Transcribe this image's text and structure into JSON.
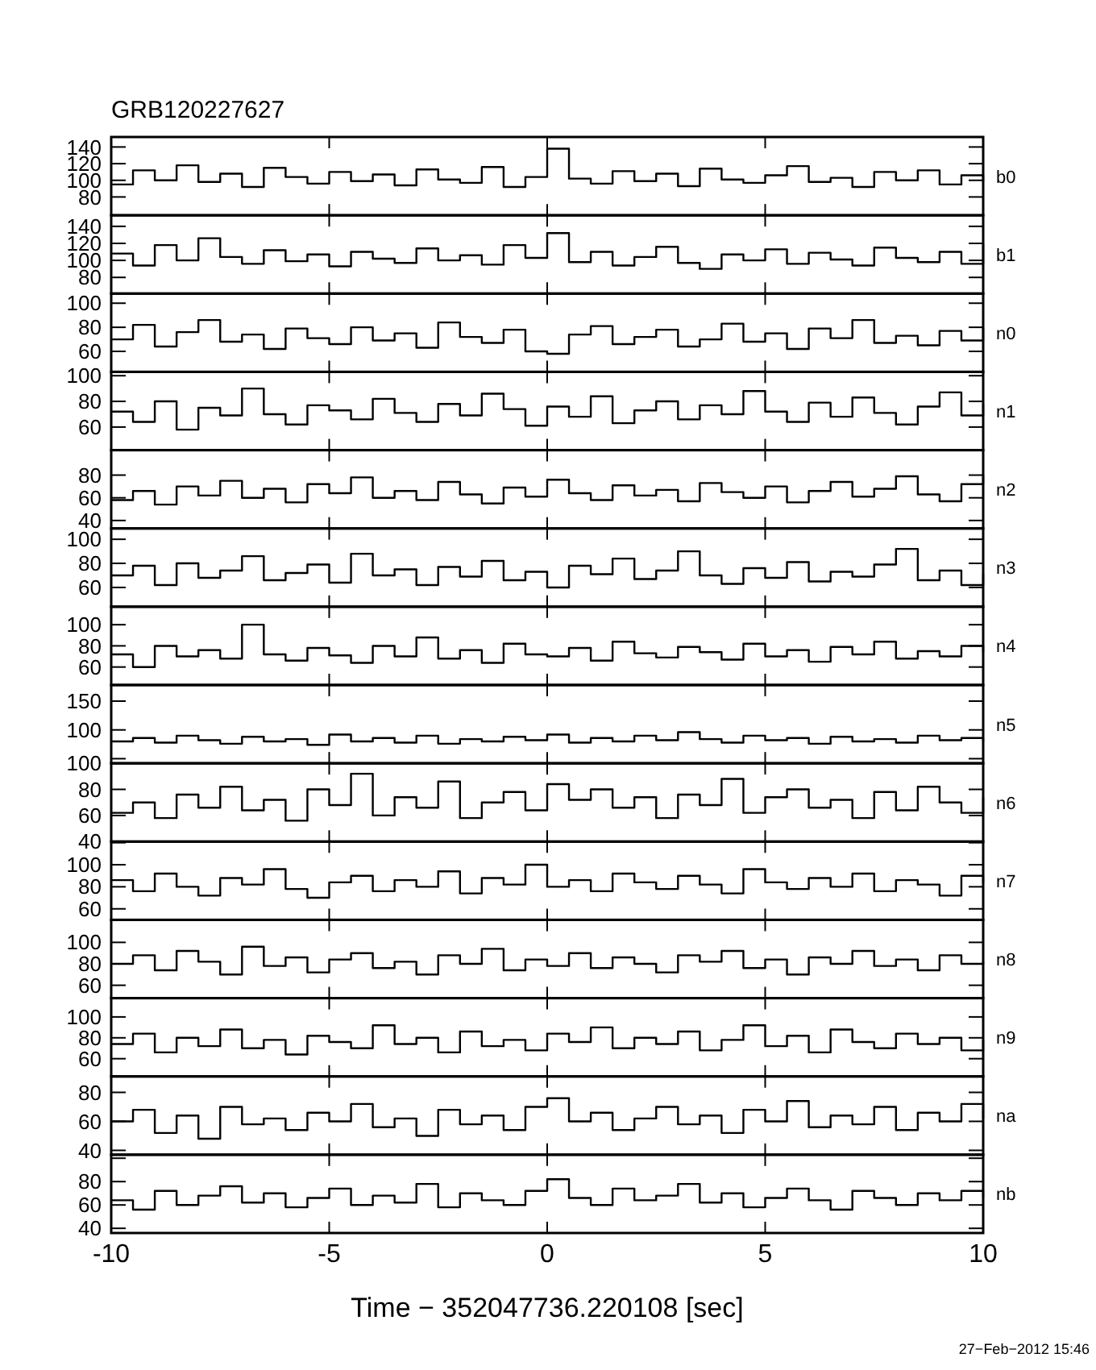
{
  "chart_data": [
    {
      "type": "step",
      "title": "GRB120227627",
      "x": [
        -10,
        -9.5,
        -9,
        -8.5,
        -8,
        -7.5,
        -7,
        -6.5,
        -6,
        -5.5,
        -5,
        -4.5,
        -4,
        -3.5,
        -3,
        -2.5,
        -2,
        -1.5,
        -1,
        -0.5,
        0,
        0.5,
        1,
        1.5,
        2,
        2.5,
        3,
        3.5,
        4,
        4.5,
        5,
        5.5,
        6,
        6.5,
        7,
        7.5,
        8,
        8.5,
        9,
        9.5,
        10
      ],
      "xlim": [
        -10,
        10
      ],
      "xticks": [
        -10,
        -5,
        0,
        5,
        10
      ],
      "ylim": [
        58,
        152
      ],
      "yticks": [
        80,
        100,
        120,
        140
      ],
      "tick_labels": "y",
      "series": [
        {
          "name": "b0",
          "color": "#000000",
          "values": [
            95,
            112,
            100,
            118,
            98,
            108,
            92,
            115,
            104,
            96,
            110,
            99,
            107,
            94,
            113,
            101,
            97,
            116,
            92,
            104,
            138,
            102,
            96,
            111,
            99,
            108,
            93,
            114,
            101,
            97,
            106,
            117,
            98,
            103,
            92,
            110,
            100,
            112,
            95,
            106,
            99
          ]
        }
      ]
    },
    {
      "type": "step",
      "x": [
        -10,
        -9.5,
        -9,
        -8.5,
        -8,
        -7.5,
        -7,
        -6.5,
        -6,
        -5.5,
        -5,
        -4.5,
        -4,
        -3.5,
        -3,
        -2.5,
        -2,
        -1.5,
        -1,
        -0.5,
        0,
        0.5,
        1,
        1.5,
        2,
        2.5,
        3,
        3.5,
        4,
        4.5,
        5,
        5.5,
        6,
        6.5,
        7,
        7.5,
        8,
        8.5,
        9,
        9.5,
        10
      ],
      "xlim": [
        -10,
        10
      ],
      "xticks": [
        -10,
        -5,
        0,
        5,
        10
      ],
      "ylim": [
        61,
        153
      ],
      "yticks": [
        80,
        100,
        120,
        140
      ],
      "tick_labels": "y",
      "series": [
        {
          "name": "b1",
          "color": "#000000",
          "values": [
            108,
            94,
            118,
            100,
            126,
            104,
            96,
            112,
            99,
            107,
            93,
            110,
            102,
            97,
            114,
            100,
            106,
            95,
            118,
            103,
            132,
            98,
            110,
            94,
            104,
            116,
            97,
            90,
            107,
            100,
            113,
            96,
            109,
            101,
            94,
            115,
            103,
            98,
            110,
            96,
            120
          ]
        }
      ]
    },
    {
      "type": "step",
      "x": [
        -10,
        -9.5,
        -9,
        -8.5,
        -8,
        -7.5,
        -7,
        -6.5,
        -6,
        -5.5,
        -5,
        -4.5,
        -4,
        -3.5,
        -3,
        -2.5,
        -2,
        -1.5,
        -1,
        -0.5,
        0,
        0.5,
        1,
        1.5,
        2,
        2.5,
        3,
        3.5,
        4,
        4.5,
        5,
        5.5,
        6,
        6.5,
        7,
        7.5,
        8,
        8.5,
        9,
        9.5,
        10
      ],
      "xlim": [
        -10,
        10
      ],
      "xticks": [
        -10,
        -5,
        0,
        5,
        10
      ],
      "ylim": [
        43,
        108
      ],
      "yticks": [
        60,
        80,
        100
      ],
      "tick_labels": "y",
      "series": [
        {
          "name": "n0",
          "color": "#000000",
          "values": [
            70,
            82,
            64,
            76,
            86,
            68,
            74,
            62,
            79,
            71,
            66,
            80,
            69,
            75,
            63,
            84,
            72,
            67,
            78,
            60,
            58,
            74,
            81,
            66,
            72,
            78,
            64,
            70,
            83,
            68,
            75,
            62,
            79,
            71,
            86,
            67,
            73,
            65,
            77,
            69,
            80
          ]
        }
      ]
    },
    {
      "type": "step",
      "x": [
        -10,
        -9.5,
        -9,
        -8.5,
        -8,
        -7.5,
        -7,
        -6.5,
        -6,
        -5.5,
        -5,
        -4.5,
        -4,
        -3.5,
        -3,
        -2.5,
        -2,
        -1.5,
        -1,
        -0.5,
        0,
        0.5,
        1,
        1.5,
        2,
        2.5,
        3,
        3.5,
        4,
        4.5,
        5,
        5.5,
        6,
        6.5,
        7,
        7.5,
        8,
        8.5,
        9,
        9.5,
        10
      ],
      "xlim": [
        -10,
        10
      ],
      "xticks": [
        -10,
        -5,
        0,
        5,
        10
      ],
      "ylim": [
        42,
        103
      ],
      "yticks": [
        60,
        80,
        100
      ],
      "tick_labels": "y",
      "series": [
        {
          "name": "n1",
          "color": "#000000",
          "values": [
            72,
            64,
            80,
            58,
            75,
            69,
            90,
            70,
            62,
            77,
            73,
            66,
            82,
            71,
            64,
            78,
            69,
            86,
            74,
            61,
            76,
            68,
            84,
            63,
            73,
            80,
            66,
            77,
            70,
            88,
            72,
            64,
            79,
            68,
            83,
            71,
            62,
            76,
            87,
            69,
            78
          ]
        }
      ]
    },
    {
      "type": "step",
      "x": [
        -10,
        -9.5,
        -9,
        -8.5,
        -8,
        -7.5,
        -7,
        -6.5,
        -6,
        -5.5,
        -5,
        -4.5,
        -4,
        -3.5,
        -3,
        -2.5,
        -2,
        -1.5,
        -1,
        -0.5,
        0,
        0.5,
        1,
        1.5,
        2,
        2.5,
        3,
        3.5,
        4,
        4.5,
        5,
        5.5,
        6,
        6.5,
        7,
        7.5,
        8,
        8.5,
        9,
        9.5,
        10
      ],
      "xlim": [
        -10,
        10
      ],
      "xticks": [
        -10,
        -5,
        0,
        5,
        10
      ],
      "ylim": [
        33,
        102
      ],
      "yticks": [
        40,
        60,
        80
      ],
      "tick_labels": "y",
      "series": [
        {
          "name": "n2",
          "color": "#000000",
          "values": [
            58,
            66,
            54,
            70,
            62,
            75,
            60,
            68,
            56,
            72,
            64,
            78,
            60,
            66,
            58,
            74,
            63,
            55,
            69,
            61,
            76,
            64,
            58,
            71,
            62,
            67,
            57,
            73,
            65,
            60,
            70,
            56,
            66,
            74,
            61,
            68,
            79,
            63,
            57,
            72,
            80
          ]
        }
      ]
    },
    {
      "type": "step",
      "x": [
        -10,
        -9.5,
        -9,
        -8.5,
        -8,
        -7.5,
        -7,
        -6.5,
        -6,
        -5.5,
        -5,
        -4.5,
        -4,
        -3.5,
        -3,
        -2.5,
        -2,
        -1.5,
        -1,
        -0.5,
        0,
        0.5,
        1,
        1.5,
        2,
        2.5,
        3,
        3.5,
        4,
        4.5,
        5,
        5.5,
        6,
        6.5,
        7,
        7.5,
        8,
        8.5,
        9,
        9.5,
        10
      ],
      "xlim": [
        -10,
        10
      ],
      "xticks": [
        -10,
        -5,
        0,
        5,
        10
      ],
      "ylim": [
        44,
        109
      ],
      "yticks": [
        60,
        80,
        100
      ],
      "tick_labels": "y",
      "series": [
        {
          "name": "n3",
          "color": "#000000",
          "values": [
            70,
            78,
            62,
            80,
            68,
            74,
            86,
            66,
            72,
            79,
            64,
            88,
            70,
            75,
            62,
            77,
            69,
            82,
            66,
            73,
            60,
            78,
            71,
            84,
            67,
            74,
            90,
            70,
            63,
            76,
            68,
            81,
            65,
            73,
            69,
            79,
            92,
            66,
            74,
            62,
            71
          ]
        }
      ]
    },
    {
      "type": "step",
      "x": [
        -10,
        -9.5,
        -9,
        -8.5,
        -8,
        -7.5,
        -7,
        -6.5,
        -6,
        -5.5,
        -5,
        -4.5,
        -4,
        -3.5,
        -3,
        -2.5,
        -2,
        -1.5,
        -1,
        -0.5,
        0,
        0.5,
        1,
        1.5,
        2,
        2.5,
        3,
        3.5,
        4,
        4.5,
        5,
        5.5,
        6,
        6.5,
        7,
        7.5,
        8,
        8.5,
        9,
        9.5,
        10
      ],
      "xlim": [
        -10,
        10
      ],
      "xticks": [
        -10,
        -5,
        0,
        5,
        10
      ],
      "ylim": [
        43,
        117
      ],
      "yticks": [
        60,
        80,
        100
      ],
      "tick_labels": "y",
      "series": [
        {
          "name": "n4",
          "color": "#000000",
          "values": [
            72,
            60,
            80,
            70,
            76,
            68,
            100,
            72,
            66,
            78,
            71,
            64,
            80,
            70,
            88,
            68,
            76,
            64,
            82,
            72,
            70,
            78,
            66,
            84,
            73,
            69,
            79,
            74,
            67,
            82,
            70,
            76,
            65,
            79,
            72,
            84,
            68,
            75,
            70,
            80,
            74
          ]
        }
      ]
    },
    {
      "type": "step",
      "x": [
        -10,
        -9.5,
        -9,
        -8.5,
        -8,
        -7.5,
        -7,
        -6.5,
        -6,
        -5.5,
        -5,
        -4.5,
        -4,
        -3.5,
        -3,
        -2.5,
        -2,
        -1.5,
        -1,
        -0.5,
        0,
        0.5,
        1,
        1.5,
        2,
        2.5,
        3,
        3.5,
        4,
        4.5,
        5,
        5.5,
        6,
        6.5,
        7,
        7.5,
        8,
        8.5,
        9,
        9.5,
        10
      ],
      "xlim": [
        -10,
        10
      ],
      "xticks": [
        -10,
        -5,
        0,
        5,
        10
      ],
      "ylim": [
        42,
        178
      ],
      "yticks": [
        {
          "value": 50,
          "label": null
        },
        100,
        150
      ],
      "tick_labels": "y",
      "series": [
        {
          "name": "n5",
          "color": "#000000",
          "values": [
            80,
            86,
            78,
            90,
            82,
            76,
            88,
            80,
            84,
            74,
            92,
            80,
            86,
            78,
            90,
            76,
            84,
            80,
            88,
            82,
            92,
            78,
            86,
            80,
            90,
            82,
            96,
            84,
            78,
            90,
            82,
            86,
            76,
            88,
            80,
            84,
            78,
            90,
            82,
            86,
            80
          ]
        }
      ]
    },
    {
      "type": "step",
      "x": [
        -10,
        -9.5,
        -9,
        -8.5,
        -8,
        -7.5,
        -7,
        -6.5,
        -6,
        -5.5,
        -5,
        -4.5,
        -4,
        -3.5,
        -3,
        -2.5,
        -2,
        -1.5,
        -1,
        -0.5,
        0,
        0.5,
        1,
        1.5,
        2,
        2.5,
        3,
        3.5,
        4,
        4.5,
        5,
        5.5,
        6,
        6.5,
        7,
        7.5,
        8,
        8.5,
        9,
        9.5,
        10
      ],
      "xlim": [
        -10,
        10
      ],
      "xticks": [
        -10,
        -5,
        0,
        5,
        10
      ],
      "ylim": [
        40,
        100
      ],
      "yticks": [
        40,
        60,
        80,
        100
      ],
      "tick_labels": "y",
      "series": [
        {
          "name": "n6",
          "color": "#000000",
          "values": [
            62,
            70,
            58,
            76,
            66,
            82,
            64,
            72,
            56,
            80,
            68,
            92,
            60,
            74,
            66,
            86,
            58,
            70,
            78,
            64,
            84,
            72,
            80,
            66,
            74,
            58,
            76,
            68,
            88,
            62,
            74,
            80,
            66,
            72,
            58,
            78,
            64,
            82,
            70,
            62,
            74
          ]
        }
      ]
    },
    {
      "type": "step",
      "x": [
        -10,
        -9.5,
        -9,
        -8.5,
        -8,
        -7.5,
        -7,
        -6.5,
        -6,
        -5.5,
        -5,
        -4.5,
        -4,
        -3.5,
        -3,
        -2.5,
        -2,
        -1.5,
        -1,
        -0.5,
        0,
        0.5,
        1,
        1.5,
        2,
        2.5,
        3,
        3.5,
        4,
        4.5,
        5,
        5.5,
        6,
        6.5,
        7,
        7.5,
        8,
        8.5,
        9,
        9.5,
        10
      ],
      "xlim": [
        -10,
        10
      ],
      "xticks": [
        -10,
        -5,
        0,
        5,
        10
      ],
      "ylim": [
        50,
        121
      ],
      "yticks": [
        60,
        80,
        100,
        {
          "value": 120,
          "label": null
        }
      ],
      "tick_labels": "y",
      "series": [
        {
          "name": "n7",
          "color": "#000000",
          "values": [
            86,
            76,
            92,
            80,
            72,
            88,
            82,
            96,
            78,
            70,
            84,
            90,
            76,
            86,
            80,
            94,
            74,
            88,
            82,
            100,
            80,
            86,
            76,
            92,
            84,
            78,
            90,
            82,
            74,
            96,
            84,
            78,
            88,
            80,
            92,
            76,
            86,
            82,
            72,
            90,
            84
          ]
        }
      ]
    },
    {
      "type": "step",
      "x": [
        -10,
        -9.5,
        -9,
        -8.5,
        -8,
        -7.5,
        -7,
        -6.5,
        -6,
        -5.5,
        -5,
        -4.5,
        -4,
        -3.5,
        -3,
        -2.5,
        -2,
        -1.5,
        -1,
        -0.5,
        0,
        0.5,
        1,
        1.5,
        2,
        2.5,
        3,
        3.5,
        4,
        4.5,
        5,
        5.5,
        6,
        6.5,
        7,
        7.5,
        8,
        8.5,
        9,
        9.5,
        10
      ],
      "xlim": [
        -10,
        10
      ],
      "xticks": [
        -10,
        -5,
        0,
        5,
        10
      ],
      "ylim": [
        48,
        121
      ],
      "yticks": [
        60,
        80,
        100
      ],
      "tick_labels": "y",
      "series": [
        {
          "name": "n8",
          "color": "#000000",
          "values": [
            80,
            88,
            74,
            92,
            82,
            70,
            96,
            78,
            86,
            72,
            84,
            90,
            76,
            82,
            70,
            88,
            80,
            94,
            74,
            84,
            78,
            90,
            76,
            86,
            80,
            72,
            88,
            82,
            92,
            76,
            84,
            70,
            86,
            80,
            92,
            78,
            84,
            74,
            88,
            80,
            82
          ]
        }
      ]
    },
    {
      "type": "step",
      "x": [
        -10,
        -9.5,
        -9,
        -8.5,
        -8,
        -7.5,
        -7,
        -6.5,
        -6,
        -5.5,
        -5,
        -4.5,
        -4,
        -3.5,
        -3,
        -2.5,
        -2,
        -1.5,
        -1,
        -0.5,
        0,
        0.5,
        1,
        1.5,
        2,
        2.5,
        3,
        3.5,
        4,
        4.5,
        5,
        5.5,
        6,
        6.5,
        7,
        7.5,
        8,
        8.5,
        9,
        9.5,
        10
      ],
      "xlim": [
        -10,
        10
      ],
      "xticks": [
        -10,
        -5,
        0,
        5,
        10
      ],
      "ylim": [
        43,
        118
      ],
      "yticks": [
        60,
        80,
        100
      ],
      "tick_labels": "y",
      "series": [
        {
          "name": "n9",
          "color": "#000000",
          "values": [
            74,
            84,
            66,
            80,
            72,
            88,
            70,
            78,
            64,
            82,
            76,
            70,
            92,
            74,
            80,
            66,
            86,
            72,
            78,
            68,
            84,
            76,
            90,
            70,
            80,
            74,
            86,
            68,
            78,
            92,
            72,
            82,
            66,
            88,
            76,
            70,
            84,
            74,
            80,
            68,
            78
          ]
        }
      ]
    },
    {
      "type": "step",
      "x": [
        -10,
        -9.5,
        -9,
        -8.5,
        -8,
        -7.5,
        -7,
        -6.5,
        -6,
        -5.5,
        -5,
        -4.5,
        -4,
        -3.5,
        -3,
        -2.5,
        -2,
        -1.5,
        -1,
        -0.5,
        0,
        0.5,
        1,
        1.5,
        2,
        2.5,
        3,
        3.5,
        4,
        4.5,
        5,
        5.5,
        6,
        6.5,
        7,
        7.5,
        8,
        8.5,
        9,
        9.5,
        10
      ],
      "xlim": [
        -10,
        10
      ],
      "xticks": [
        -10,
        -5,
        0,
        5,
        10
      ],
      "ylim": [
        37,
        91
      ],
      "yticks": [
        40,
        60,
        80
      ],
      "tick_labels": "y",
      "series": [
        {
          "name": "na",
          "color": "#000000",
          "values": [
            60,
            68,
            52,
            64,
            48,
            70,
            58,
            62,
            54,
            66,
            60,
            72,
            56,
            62,
            50,
            68,
            58,
            64,
            54,
            70,
            76,
            60,
            66,
            54,
            62,
            70,
            58,
            64,
            52,
            68,
            60,
            74,
            56,
            64,
            58,
            70,
            54,
            66,
            60,
            72,
            62
          ]
        }
      ]
    },
    {
      "type": "step",
      "x": [
        -10,
        -9.5,
        -9,
        -8.5,
        -8,
        -7.5,
        -7,
        -6.5,
        -6,
        -5.5,
        -5,
        -4.5,
        -4,
        -3.5,
        -3,
        -2.5,
        -2,
        -1.5,
        -1,
        -0.5,
        0,
        0.5,
        1,
        1.5,
        2,
        2.5,
        3,
        3.5,
        4,
        4.5,
        5,
        5.5,
        6,
        6.5,
        7,
        7.5,
        8,
        8.5,
        9,
        9.5,
        10
      ],
      "xlim": [
        -10,
        10
      ],
      "xticks": [
        -10,
        -5,
        0,
        5,
        10
      ],
      "ylim": [
        36,
        103
      ],
      "yticks": [
        40,
        60,
        80,
        {
          "value": 100,
          "label": null
        }
      ],
      "xlabel": "Time − 352047736.220108 [sec]",
      "annotations": [
        "27−Feb−2012 15:46"
      ],
      "series": [
        {
          "name": "nb",
          "color": "#000000",
          "values": [
            64,
            56,
            72,
            60,
            68,
            76,
            62,
            70,
            58,
            66,
            74,
            60,
            68,
            62,
            78,
            58,
            70,
            64,
            60,
            72,
            82,
            66,
            60,
            74,
            64,
            68,
            78,
            62,
            70,
            58,
            66,
            74,
            64,
            56,
            72,
            66,
            60,
            70,
            64,
            72,
            66
          ]
        }
      ]
    }
  ]
}
